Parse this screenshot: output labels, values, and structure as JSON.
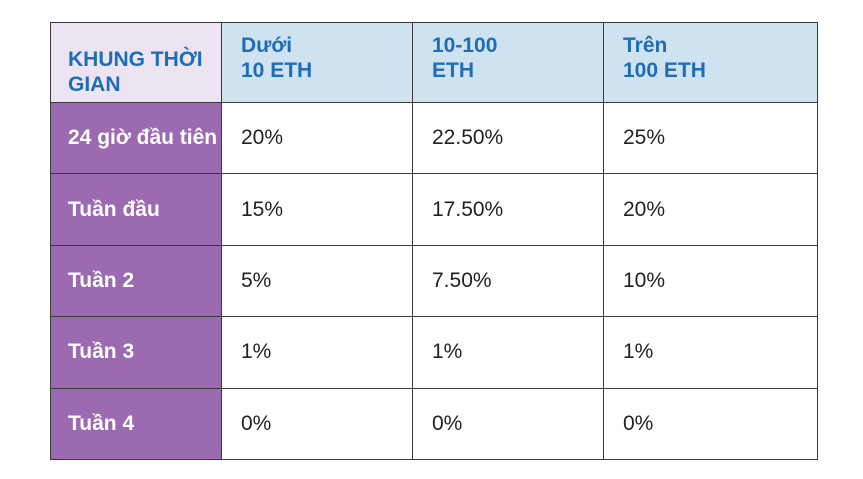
{
  "table": {
    "headers": {
      "period": [
        "KHUNG THỜI",
        "GIAN"
      ],
      "tier_1": [
        "Dưới",
        "10 ETH"
      ],
      "tier_2": [
        "10-100",
        "ETH"
      ],
      "tier_3": [
        "Trên",
        "100 ETH"
      ]
    },
    "rows": [
      {
        "period": "24 giờ đầu tiên",
        "values": [
          "20%",
          "22.50%",
          "25%"
        ]
      },
      {
        "period": "Tuần đầu",
        "values": [
          "15%",
          "17.50%",
          "20%"
        ]
      },
      {
        "period": "Tuần 2",
        "values": [
          "5%",
          "7.50%",
          "10%"
        ]
      },
      {
        "period": "Tuần 3",
        "values": [
          "1%",
          "1%",
          "1%"
        ]
      },
      {
        "period": "Tuần 4",
        "values": [
          "0%",
          "0%",
          "0%"
        ]
      }
    ]
  },
  "colors": {
    "header_text": "#1f6db5",
    "header_bg": "#cfe2f0",
    "period_header_bg": "#ece4f1",
    "period_bg": "#9b6ab0",
    "period_text": "#ffffff",
    "border": "#3a3a3a"
  }
}
